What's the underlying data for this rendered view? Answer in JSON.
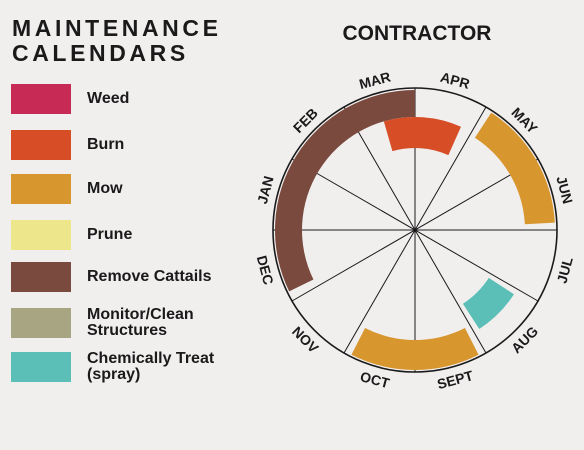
{
  "title": {
    "line1": "MAINTENANCE",
    "line2": "CALENDARS"
  },
  "wheel_title": "CONTRACTOR",
  "months": [
    "JAN",
    "FEB",
    "MAR",
    "APR",
    "MAY",
    "JUN",
    "JUL",
    "AUG",
    "SEPT",
    "OCT",
    "NOV",
    "DEC"
  ],
  "legend": [
    {
      "key": "weed",
      "label": "Weed",
      "color": "#c72a55"
    },
    {
      "key": "burn",
      "label": "Burn",
      "color": "#d64d26"
    },
    {
      "key": "mow",
      "label": "Mow",
      "color": "#d8962e"
    },
    {
      "key": "prune",
      "label": "Prune",
      "color": "#ede68a"
    },
    {
      "key": "remove_cattails",
      "label": "Remove Cattails",
      "color": "#7a4a3e"
    },
    {
      "key": "monitor_clean",
      "label": "Monitor/Clean Structures",
      "label_lines": [
        "Monitor/Clean",
        "Structures"
      ],
      "color": "#a8a583"
    },
    {
      "key": "chemically_treat",
      "label": "Chemically Treat (spray)",
      "label_lines": [
        "Chemically Treat",
        "(spray)"
      ],
      "color": "#5bbfb8"
    }
  ],
  "chart_data": {
    "type": "radial-calendar",
    "title": "CONTRACTOR",
    "categories": [
      "JAN",
      "FEB",
      "MAR",
      "APR",
      "MAY",
      "JUN",
      "JUL",
      "AUG",
      "SEPT",
      "OCT",
      "NOV",
      "DEC"
    ],
    "series": [
      {
        "name": "Remove Cattails",
        "color": "#7a4a3e",
        "periods": [
          {
            "start": "DEC",
            "end": "MAR"
          }
        ]
      },
      {
        "name": "Burn",
        "color": "#d64d26",
        "periods": [
          {
            "start": "MAR",
            "end": "APR"
          }
        ]
      },
      {
        "name": "Mow",
        "color": "#d8962e",
        "periods": [
          {
            "start": "MAY",
            "end": "JUN"
          },
          {
            "start": "SEPT",
            "end": "OCT"
          }
        ]
      },
      {
        "name": "Chemically Treat (spray)",
        "color": "#5bbfb8",
        "periods": [
          {
            "start": "AUG",
            "end": "AUG"
          }
        ]
      }
    ]
  }
}
